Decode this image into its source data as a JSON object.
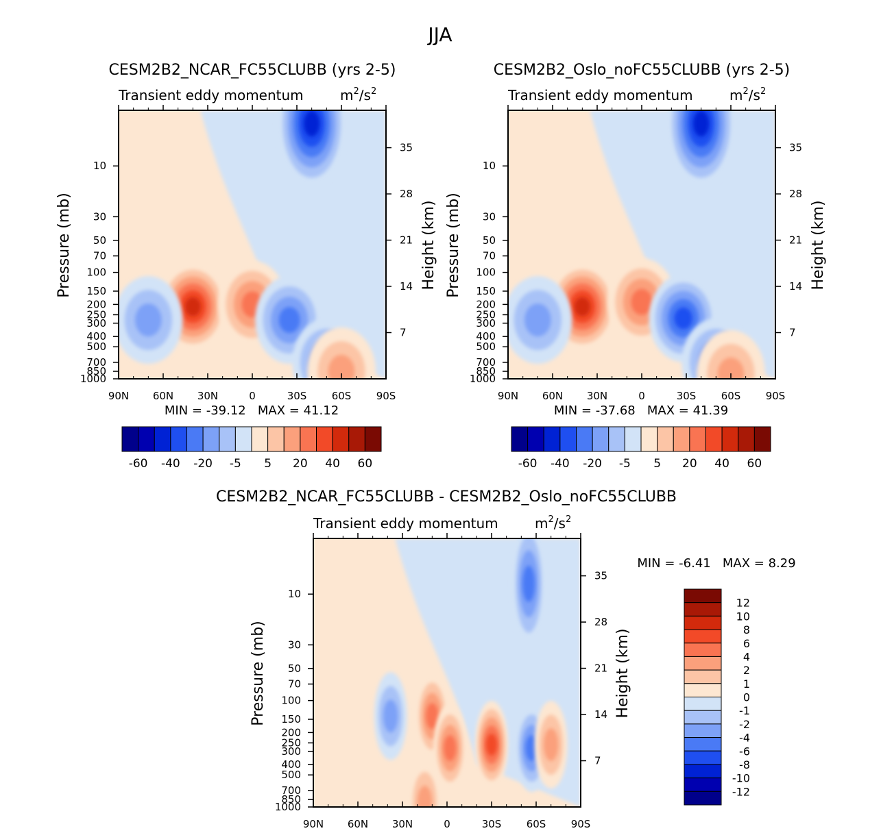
{
  "page": {
    "title": "JJA"
  },
  "chart_data": [
    {
      "type": "heatmap",
      "title": "CESM2B2_NCAR_FC55CLUBB (yrs 2-5)",
      "subtitle_left": "Transient eddy momentum",
      "units": "m²/s²",
      "units_base": "m",
      "units_sup": "2",
      "units_mid": "/s",
      "ylabel": "Pressure (mb)",
      "y2label": "Height (km)",
      "x_ticks": [
        "90N",
        "60N",
        "30N",
        "0",
        "30S",
        "60S",
        "90S"
      ],
      "y_ticks": [
        "10",
        "30",
        "50",
        "70",
        "100",
        "150",
        "200",
        "250",
        "300",
        "400",
        "500",
        "700",
        "850",
        "1000"
      ],
      "y2_ticks": [
        "35",
        "28",
        "21",
        "14",
        "7"
      ],
      "ylim": [
        1000,
        3
      ],
      "xlim": [
        90,
        -90
      ],
      "min_label": "MIN = ",
      "min_value": "-39.12",
      "max_label": "MAX = ",
      "max_value": "41.12",
      "colorbar": {
        "orientation": "horizontal",
        "colors": [
          "#00008b",
          "#0000b0",
          "#0022d4",
          "#1f4ff0",
          "#4a7af5",
          "#7da1f7",
          "#a8c2f7",
          "#d2e3f7",
          "#fde7d2",
          "#fcc5a6",
          "#fba07c",
          "#f97452",
          "#f24a28",
          "#d22a0c",
          "#a81906",
          "#7a0a03"
        ],
        "labels": [
          "-60",
          "-40",
          "-20",
          "-5",
          "5",
          "20",
          "40",
          "60"
        ]
      },
      "features": [
        {
          "lat": 40,
          "p": 210,
          "value": 41
        },
        {
          "lat": 0,
          "p": 200,
          "value": 22
        },
        {
          "lat": -25,
          "p": 280,
          "value": -18
        },
        {
          "lat": -40,
          "p": 4,
          "value": -39
        },
        {
          "lat": -50,
          "p": 700,
          "value": -20
        },
        {
          "lat": 70,
          "p": 280,
          "value": -10
        },
        {
          "lat": -60,
          "p": 850,
          "value": 10
        }
      ]
    },
    {
      "type": "heatmap",
      "title": "CESM2B2_Oslo_noFC55CLUBB (yrs 2-5)",
      "subtitle_left": "Transient eddy momentum",
      "units": "m²/s²",
      "units_base": "m",
      "units_sup": "2",
      "units_mid": "/s",
      "ylabel": "Pressure (mb)",
      "y2label": "Height (km)",
      "x_ticks": [
        "90N",
        "60N",
        "30N",
        "0",
        "30S",
        "60S",
        "90S"
      ],
      "y_ticks": [
        "10",
        "30",
        "50",
        "70",
        "100",
        "150",
        "200",
        "250",
        "300",
        "400",
        "500",
        "700",
        "850",
        "1000"
      ],
      "y2_ticks": [
        "35",
        "28",
        "21",
        "14",
        "7"
      ],
      "ylim": [
        1000,
        3
      ],
      "xlim": [
        90,
        -90
      ],
      "min_label": "MIN = ",
      "min_value": "-37.68",
      "max_label": "MAX = ",
      "max_value": "41.39",
      "colorbar": {
        "orientation": "horizontal",
        "colors": [
          "#00008b",
          "#0000b0",
          "#0022d4",
          "#1f4ff0",
          "#4a7af5",
          "#7da1f7",
          "#a8c2f7",
          "#d2e3f7",
          "#fde7d2",
          "#fcc5a6",
          "#fba07c",
          "#f97452",
          "#f24a28",
          "#d22a0c",
          "#a81906",
          "#7a0a03"
        ],
        "labels": [
          "-60",
          "-40",
          "-20",
          "-5",
          "5",
          "20",
          "40",
          "60"
        ]
      },
      "features": [
        {
          "lat": 40,
          "p": 210,
          "value": 41
        },
        {
          "lat": 0,
          "p": 190,
          "value": 22
        },
        {
          "lat": -28,
          "p": 270,
          "value": -30
        },
        {
          "lat": -40,
          "p": 4,
          "value": -37
        },
        {
          "lat": -50,
          "p": 700,
          "value": -18
        },
        {
          "lat": 70,
          "p": 280,
          "value": -10
        },
        {
          "lat": -60,
          "p": 900,
          "value": 10
        }
      ]
    },
    {
      "type": "heatmap",
      "title": "CESM2B2_NCAR_FC55CLUBB - CESM2B2_Oslo_noFC55CLUBB",
      "subtitle_left": "Transient eddy momentum",
      "units": "m²/s²",
      "units_base": "m",
      "units_sup": "2",
      "units_mid": "/s",
      "ylabel": "Pressure (mb)",
      "y2label": "Height (km)",
      "x_ticks": [
        "90N",
        "60N",
        "30N",
        "0",
        "30S",
        "60S",
        "90S"
      ],
      "y_ticks": [
        "10",
        "30",
        "50",
        "70",
        "100",
        "150",
        "200",
        "250",
        "300",
        "400",
        "500",
        "700",
        "850",
        "1000"
      ],
      "y2_ticks": [
        "35",
        "28",
        "21",
        "14",
        "7"
      ],
      "ylim": [
        1000,
        3
      ],
      "xlim": [
        90,
        -90
      ],
      "min_label": "MIN = ",
      "min_value": "-6.41",
      "max_label": "MAX = ",
      "max_value": "8.29",
      "colorbar": {
        "orientation": "vertical",
        "colors": [
          "#7a0a03",
          "#a81906",
          "#d22a0c",
          "#f24a28",
          "#f97452",
          "#fba07c",
          "#fcc5a6",
          "#fde7d2",
          "#d2e3f7",
          "#a8c2f7",
          "#7da1f7",
          "#4a7af5",
          "#1f4ff0",
          "#0022d4",
          "#0000b0",
          "#00008b"
        ],
        "labels": [
          "12",
          "10",
          "8",
          "6",
          "4",
          "2",
          "1",
          "0",
          "-1",
          "-2",
          "-4",
          "-6",
          "-8",
          "-10",
          "-12"
        ]
      },
      "features": [
        {
          "lat": -30,
          "p": 260,
          "value": 8
        },
        {
          "lat": 10,
          "p": 140,
          "value": 5
        },
        {
          "lat": -2,
          "p": 280,
          "value": 5
        },
        {
          "lat": 38,
          "p": 140,
          "value": -3
        },
        {
          "lat": -55,
          "p": 8,
          "value": -6
        },
        {
          "lat": -57,
          "p": 280,
          "value": -6
        },
        {
          "lat": -70,
          "p": 260,
          "value": 4
        },
        {
          "lat": 15,
          "p": 900,
          "value": 2
        }
      ]
    }
  ]
}
